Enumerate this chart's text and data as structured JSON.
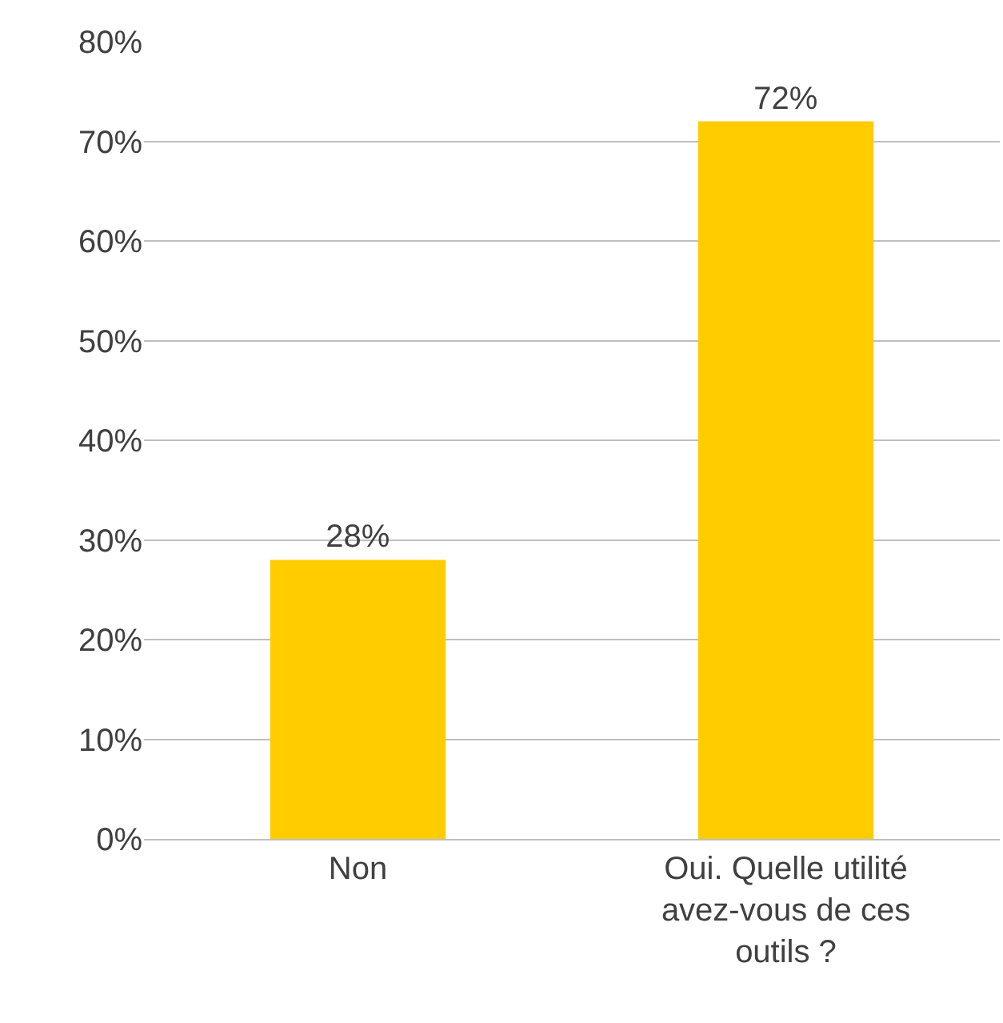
{
  "chart_data": {
    "type": "bar",
    "categories": [
      "Non",
      "Oui. Quelle utilité avez-vous de ces outils ?"
    ],
    "values": [
      28,
      72
    ],
    "color": "#ffcc00",
    "value_labels": [
      "28%",
      "72%"
    ],
    "ylim": [
      0,
      80
    ],
    "yticks": [
      {
        "value": 0,
        "label": "0%"
      },
      {
        "value": 10,
        "label": "10%"
      },
      {
        "value": 20,
        "label": "20%"
      },
      {
        "value": 30,
        "label": "30%"
      },
      {
        "value": 40,
        "label": "40%"
      },
      {
        "value": 50,
        "label": "50%"
      },
      {
        "value": 60,
        "label": "60%"
      },
      {
        "value": 70,
        "label": "70%"
      },
      {
        "value": 80,
        "label": "80%"
      }
    ],
    "grid": "y"
  }
}
